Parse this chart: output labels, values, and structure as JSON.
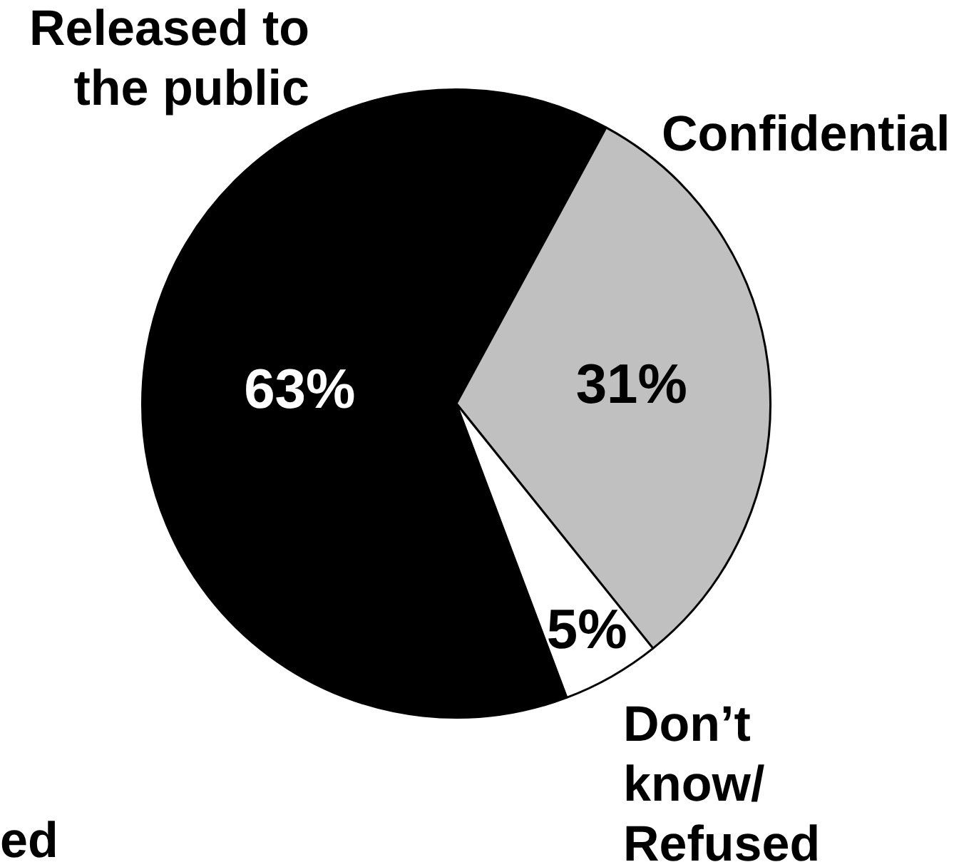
{
  "chart_data": {
    "type": "pie",
    "categories": [
      "Released to the public",
      "Confidential",
      "Don’t know/Refused"
    ],
    "values": [
      63,
      31,
      5
    ],
    "value_labels": [
      "63%",
      "31%",
      "5%"
    ],
    "colors": [
      "#000000",
      "#c0c0c0",
      "#ffffff"
    ],
    "annotations": [
      "ed"
    ]
  }
}
